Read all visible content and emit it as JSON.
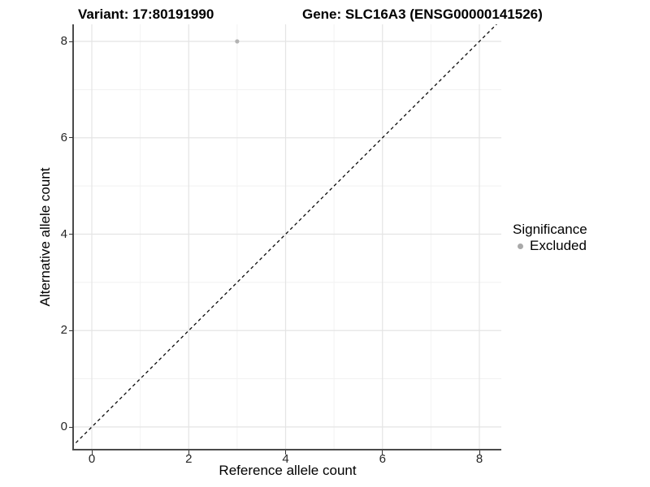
{
  "titles": {
    "variant": "Variant: 17:80191990",
    "gene": "Gene: SLC16A3 (ENSG00000141526)"
  },
  "axes": {
    "x": {
      "label": "Reference allele count",
      "ticks": [
        "0",
        "2",
        "4",
        "6",
        "8"
      ]
    },
    "y": {
      "label": "Alternative allele count",
      "ticks": [
        "0",
        "2",
        "4",
        "6",
        "8"
      ]
    }
  },
  "legend": {
    "title": "Significance",
    "items": [
      {
        "label": "Excluded",
        "color": "#a9a9a9"
      }
    ]
  },
  "chart_data": {
    "type": "scatter",
    "title": "Variant: 17:80191990 / Gene: SLC16A3 (ENSG00000141526)",
    "xlabel": "Reference allele count",
    "ylabel": "Alternative allele count",
    "xlim": [
      -0.4,
      8.45
    ],
    "ylim": [
      -0.45,
      8.35
    ],
    "x_ticks": [
      0,
      2,
      4,
      6,
      8
    ],
    "y_ticks": [
      0,
      2,
      4,
      6,
      8
    ],
    "minor_grid_x": [
      1,
      3,
      5,
      7
    ],
    "minor_grid_y": [
      1,
      3,
      5,
      7
    ],
    "grid": "on",
    "legend_position": "right",
    "series": [
      {
        "name": "Excluded",
        "color": "#b3b3b3",
        "points": [
          {
            "x": 3,
            "y": 8
          }
        ]
      }
    ],
    "reference_line": {
      "type": "identity y = x",
      "style": "dashed",
      "color": "#0a0a0a"
    }
  },
  "colors": {
    "background": "#ffffff",
    "grid_major": "#e4e4e4",
    "grid_minor": "#f1f1f1",
    "axis_line": "#4a4a4a",
    "point": "#b3b3b3",
    "legend_point": "#a9a9a9",
    "dashed_line": "#0a0a0a"
  }
}
